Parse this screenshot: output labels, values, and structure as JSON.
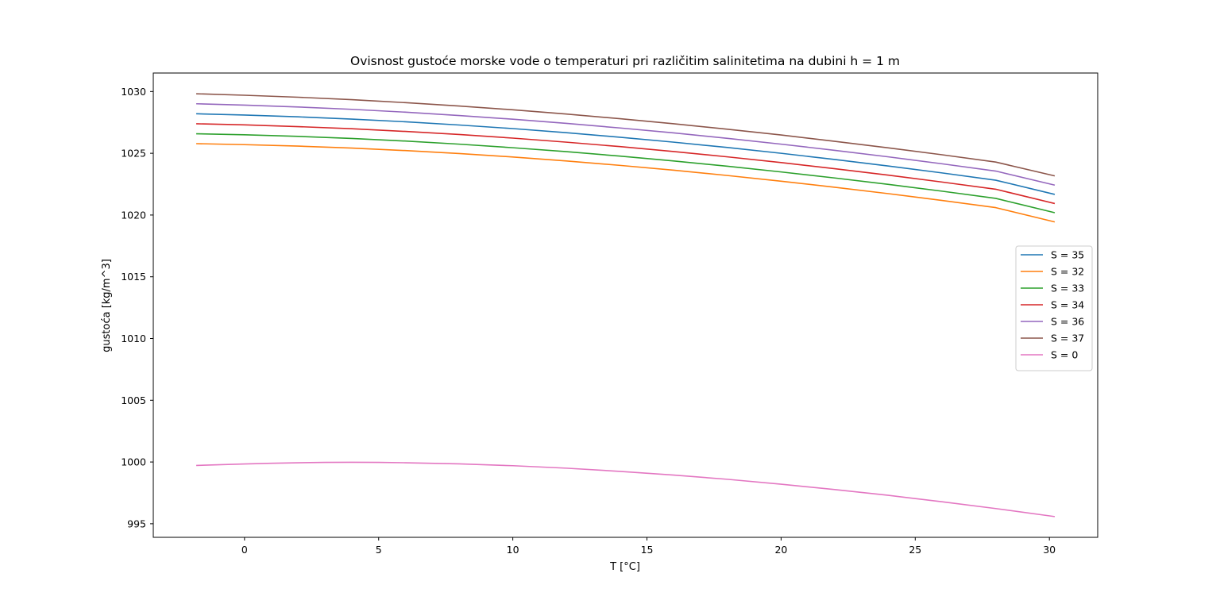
{
  "chart_data": {
    "type": "line",
    "title": "Ovisnost gustoće morske vode o temperaturi pri različitim salinitetima na dubini h = 1 m",
    "xlabel": "T [°C]",
    "ylabel": "gustoća [kg/m^3]",
    "xlim": [
      -3.4,
      31.8
    ],
    "ylim": [
      993.9,
      1031.5
    ],
    "xticks": [
      0,
      5,
      10,
      15,
      20,
      25,
      30
    ],
    "yticks": [
      995,
      1000,
      1005,
      1010,
      1015,
      1020,
      1025,
      1030
    ],
    "grid": false,
    "legend_position": "center-right",
    "series": [
      {
        "name": "S = 35",
        "color": "#1f77b4",
        "x": [
          -1.8,
          0,
          2,
          4,
          6,
          8,
          10,
          12,
          14,
          16,
          18,
          20,
          22,
          24,
          26,
          28,
          30.2
        ],
        "y": [
          1028.2,
          1028.1,
          1027.95,
          1027.77,
          1027.55,
          1027.29,
          1027.0,
          1026.67,
          1026.3,
          1025.9,
          1025.47,
          1025.0,
          1024.5,
          1023.97,
          1023.41,
          1022.82,
          1021.67
        ]
      },
      {
        "name": "S = 32",
        "color": "#ff7f0e",
        "x": [
          -1.8,
          0,
          2,
          4,
          6,
          8,
          10,
          12,
          14,
          16,
          18,
          20,
          22,
          24,
          26,
          28,
          30.2
        ],
        "y": [
          1025.78,
          1025.7,
          1025.58,
          1025.42,
          1025.22,
          1024.98,
          1024.7,
          1024.38,
          1024.02,
          1023.63,
          1023.2,
          1022.74,
          1022.25,
          1021.73,
          1021.18,
          1020.6,
          1019.44
        ]
      },
      {
        "name": "S = 33",
        "color": "#2ca02c",
        "x": [
          -1.8,
          0,
          2,
          4,
          6,
          8,
          10,
          12,
          14,
          16,
          18,
          20,
          22,
          24,
          26,
          28,
          30.2
        ],
        "y": [
          1026.58,
          1026.5,
          1026.37,
          1026.2,
          1025.99,
          1025.74,
          1025.45,
          1025.13,
          1024.77,
          1024.38,
          1023.95,
          1023.49,
          1023.0,
          1022.48,
          1021.93,
          1021.35,
          1020.19
        ]
      },
      {
        "name": "S = 34",
        "color": "#d62728",
        "x": [
          -1.8,
          0,
          2,
          4,
          6,
          8,
          10,
          12,
          14,
          16,
          18,
          20,
          22,
          24,
          26,
          28,
          30.2
        ],
        "y": [
          1027.39,
          1027.3,
          1027.16,
          1026.99,
          1026.77,
          1026.52,
          1026.23,
          1025.9,
          1025.54,
          1025.14,
          1024.71,
          1024.25,
          1023.75,
          1023.23,
          1022.67,
          1022.09,
          1020.93
        ]
      },
      {
        "name": "S = 36",
        "color": "#9467bd",
        "x": [
          -1.8,
          0,
          2,
          4,
          6,
          8,
          10,
          12,
          14,
          16,
          18,
          20,
          22,
          24,
          26,
          28,
          30.2
        ],
        "y": [
          1029.01,
          1028.9,
          1028.75,
          1028.56,
          1028.33,
          1028.06,
          1027.76,
          1027.42,
          1027.05,
          1026.65,
          1026.21,
          1025.74,
          1025.24,
          1024.71,
          1024.15,
          1023.56,
          1022.42
        ]
      },
      {
        "name": "S = 37",
        "color": "#8c564b",
        "x": [
          -1.8,
          0,
          2,
          4,
          6,
          8,
          10,
          12,
          14,
          16,
          18,
          20,
          22,
          24,
          26,
          28,
          30.2
        ],
        "y": [
          1029.82,
          1029.7,
          1029.54,
          1029.34,
          1029.1,
          1028.83,
          1028.52,
          1028.18,
          1027.8,
          1027.39,
          1026.95,
          1026.48,
          1025.97,
          1025.44,
          1024.88,
          1024.29,
          1023.17
        ]
      },
      {
        "name": "S = 0",
        "color": "#e377c2",
        "x": [
          -1.8,
          0,
          1,
          2,
          3,
          4,
          5,
          6,
          8,
          10,
          12,
          14,
          16,
          18,
          20,
          22,
          24,
          26,
          28,
          30.2
        ],
        "y": [
          999.72,
          999.84,
          999.9,
          999.94,
          999.97,
          999.98,
          999.97,
          999.94,
          999.85,
          999.7,
          999.5,
          999.24,
          998.94,
          998.6,
          998.2,
          997.77,
          997.3,
          996.78,
          996.23,
          995.58
        ]
      }
    ]
  }
}
